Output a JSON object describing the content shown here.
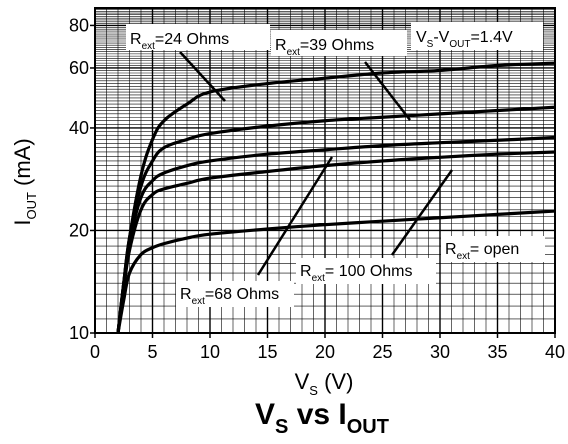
{
  "chart_data": {
    "type": "line",
    "title": {
      "main": "V",
      "main_sub": "S",
      "mid": " vs I",
      "mid_sub": "OUT"
    },
    "xlabel": {
      "main": "V",
      "sub": "S",
      "unit": " (V)"
    },
    "ylabel": {
      "main": "I",
      "sub": "OUT",
      "unit": " (mA)"
    },
    "xlim": [
      0,
      40
    ],
    "ylim": [
      10,
      90
    ],
    "yscale": "log",
    "grid": true,
    "x_ticks": [
      0,
      5,
      10,
      15,
      20,
      25,
      30,
      35,
      40
    ],
    "x_tick_labels": [
      "0",
      "5",
      "10",
      "15",
      "20",
      "25",
      "30",
      "35",
      "40"
    ],
    "y_ticks": [
      10,
      20,
      40,
      60,
      80
    ],
    "y_tick_labels": [
      "10",
      "20",
      "40",
      "60",
      "80"
    ],
    "series": [
      {
        "name": "Rext=24 Ohms",
        "x": [
          2,
          2.5,
          3,
          4,
          5,
          6,
          8,
          10,
          15,
          20,
          25,
          30,
          35,
          40
        ],
        "y": [
          10,
          14,
          19,
          29,
          37,
          42,
          47,
          51,
          54,
          56,
          58,
          59,
          61,
          62
        ]
      },
      {
        "name": "Rext=39 Ohms",
        "x": [
          2,
          2.5,
          3,
          4,
          5,
          6,
          8,
          10,
          15,
          20,
          25,
          30,
          35,
          40
        ],
        "y": [
          10,
          14,
          19,
          27,
          32,
          35,
          37,
          38.5,
          40.5,
          42,
          43,
          44,
          45,
          46
        ]
      },
      {
        "name": "Rext=68 Ohms",
        "x": [
          2,
          2.5,
          3,
          4,
          5,
          6,
          8,
          10,
          15,
          20,
          25,
          30,
          35,
          40
        ],
        "y": [
          10,
          14,
          18.5,
          25,
          28,
          29.5,
          31,
          32,
          33.5,
          34.5,
          35.5,
          36.2,
          36.8,
          37.5
        ]
      },
      {
        "name": "Rext= 100 Ohms",
        "x": [
          2,
          2.5,
          3,
          4,
          5,
          6,
          8,
          10,
          15,
          20,
          25,
          30,
          35,
          40
        ],
        "y": [
          10,
          13.5,
          17.5,
          23,
          25.5,
          26.5,
          27.5,
          28.5,
          29.8,
          31,
          32,
          32.8,
          33.5,
          34
        ]
      },
      {
        "name": "Rext= open",
        "x": [
          2,
          2.5,
          3,
          4,
          5,
          6,
          8,
          10,
          15,
          20,
          25,
          30,
          35,
          40
        ],
        "y": [
          10,
          12.5,
          15,
          17,
          17.8,
          18.3,
          19,
          19.5,
          20.2,
          20.8,
          21.3,
          21.8,
          22.3,
          22.8
        ]
      }
    ],
    "annotations": [
      {
        "pre": "R",
        "sub": "ext",
        "post": "=24 Ohms"
      },
      {
        "pre": "R",
        "sub": "ext",
        "post": "=39 Ohms"
      },
      {
        "pre": "V",
        "sub": "S",
        "mid": "-V",
        "sub2": "OUT",
        "post": "=1.4V"
      },
      {
        "pre": "R",
        "sub": "ext",
        "post": "=68 Ohms"
      },
      {
        "pre": "R",
        "sub": "ext",
        "post": "= 100 Ohms"
      },
      {
        "pre": "R",
        "sub": "ext",
        "post": "= open"
      }
    ]
  }
}
